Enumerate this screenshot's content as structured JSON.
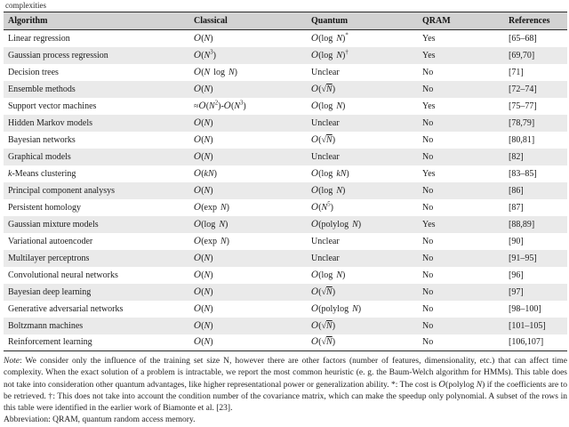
{
  "caption_fragment": "complexities",
  "colors": {
    "header_bg": "#d2d2d2",
    "stripe_bg": "#eaeaea",
    "rule": "#2a2a2a"
  },
  "table": {
    "headers": [
      "Algorithm",
      "Classical",
      "Quantum",
      "QRAM",
      "References"
    ],
    "rows": [
      {
        "algorithm": "Linear regression",
        "classical": "O(_N_)",
        "quantum": "O(log _N_)^*^",
        "qram": "Yes",
        "references": "[65–68]"
      },
      {
        "algorithm": "Gaussian process regression",
        "classical": "O(_N_^3^)",
        "quantum": "O(log _N_)^†^",
        "qram": "Yes",
        "references": "[69,70]"
      },
      {
        "algorithm": "Decision trees",
        "classical": "O(_N_ log _N_)",
        "quantum": "Unclear",
        "qram": "No",
        "references": "[71]"
      },
      {
        "algorithm": "Ensemble methods",
        "classical": "O(_N_)",
        "quantum": "O(√{_N_})",
        "qram": "No",
        "references": "[72–74]"
      },
      {
        "algorithm": "Support vector machines",
        "classical": "≈O(_N_^2^)-O(_N_^3^)",
        "quantum": "O(log _N_)",
        "qram": "Yes",
        "references": "[75–77]"
      },
      {
        "algorithm": "Hidden Markov models",
        "classical": "O(_N_)",
        "quantum": "Unclear",
        "qram": "No",
        "references": "[78,79]"
      },
      {
        "algorithm": "Bayesian networks",
        "classical": "O(_N_)",
        "quantum": "O(√{_N_})",
        "qram": "No",
        "references": "[80,81]"
      },
      {
        "algorithm": "Graphical models",
        "classical": "O(_N_)",
        "quantum": "Unclear",
        "qram": "No",
        "references": "[82]"
      },
      {
        "algorithm": "_k_-Means clustering",
        "classical": "O(_kN_)",
        "quantum": "O(log _kN_)",
        "qram": "Yes",
        "references": "[83–85]"
      },
      {
        "algorithm": "Principal component analysys",
        "classical": "O(_N_)",
        "quantum": "O(log _N_)",
        "qram": "No",
        "references": "[86]"
      },
      {
        "algorithm": "Persistent homology",
        "classical": "O(exp _N_)",
        "quantum": "O(_N_^5^)",
        "qram": "No",
        "references": "[87]"
      },
      {
        "algorithm": "Gaussian mixture models",
        "classical": "O(log _N_)",
        "quantum": "O(polylog _N_)",
        "qram": "Yes",
        "references": "[88,89]"
      },
      {
        "algorithm": "Variational autoencoder",
        "classical": "O(exp _N_)",
        "quantum": "Unclear",
        "qram": "No",
        "references": "[90]"
      },
      {
        "algorithm": "Multilayer perceptrons",
        "classical": "O(_N_)",
        "quantum": "Unclear",
        "qram": "No",
        "references": "[91–95]"
      },
      {
        "algorithm": "Convolutional neural networks",
        "classical": "O(_N_)",
        "quantum": "O(log _N_)",
        "qram": "No",
        "references": "[96]"
      },
      {
        "algorithm": "Bayesian deep learning",
        "classical": "O(_N_)",
        "quantum": "O(√{_N_})",
        "qram": "No",
        "references": "[97]"
      },
      {
        "algorithm": "Generative adversarial networks",
        "classical": "O(_N_)",
        "quantum": "O(polylog _N_)",
        "qram": "No",
        "references": "[98–100]"
      },
      {
        "algorithm": "Boltzmann machines",
        "classical": "O(_N_)",
        "quantum": "O(√{_N_})",
        "qram": "No",
        "references": "[101–105]"
      },
      {
        "algorithm": "Reinforcement learning",
        "classical": "O(_N_)",
        "quantum": "O(√{_N_})",
        "qram": "No",
        "references": "[106,107]"
      }
    ]
  },
  "footnote": {
    "note_label": "Note",
    "note_text": ": We consider only the influence of the training set size N, however there are other factors (number of features, dimensionality, etc.) that can affect time complexity. When the exact solution of a problem is intractable, we report the most common heuristic (e. g. the Baum-Welch algorithm for HMMs). This table does not take into consideration other quantum advantages, like higher representational power or generalization ability. *: The cost is O(polylog _N_) if the coefficients are to be retrieved. †: This does not take into account the condition number of the covariance matrix, which can make the speedup only polynomial. A subset of the rows in this table were identified in the earlier work of Biamonte et al. [23].",
    "abbreviation_text": "Abbreviation: QRAM, quantum random access memory."
  }
}
